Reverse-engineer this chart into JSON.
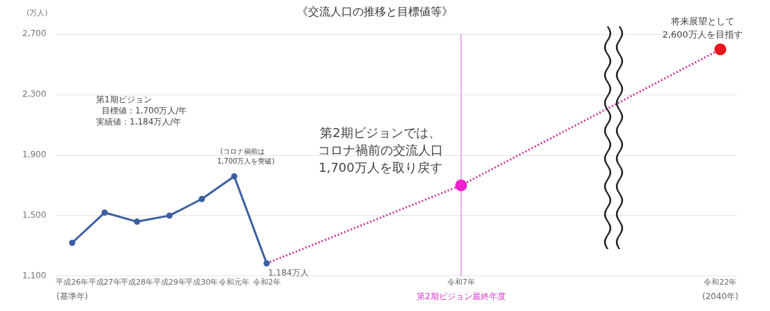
{
  "chart_data": {
    "type": "line",
    "title": "《交流人口の推移と目標値等》",
    "ylabel": "(万人)",
    "categories": [
      "平成26年",
      "平成27年",
      "平成28年",
      "平成29年",
      "平成30年",
      "令和元年",
      "令和2年",
      null,
      null,
      null,
      null,
      null,
      "令和7年",
      null,
      null,
      null,
      null,
      null,
      null,
      null,
      "令和22年"
    ],
    "series": [
      {
        "color": "#3d5fa0",
        "marker": "circle",
        "line_style": "solid",
        "values": [
          1320,
          1520,
          1460,
          1500,
          1610,
          1760,
          1184,
          null,
          null,
          null,
          null,
          null,
          null,
          null,
          null,
          null,
          null,
          null,
          null,
          null,
          null
        ]
      },
      {
        "color": "#cc3399",
        "marker": "circle",
        "line_style": "dotted",
        "colors": [
          null,
          null,
          null,
          null,
          null,
          null,
          "#cc3399",
          null,
          null,
          null,
          null,
          null,
          "#ee22cc",
          null,
          null,
          null,
          null,
          null,
          null,
          null,
          "#e8141e"
        ],
        "values": [
          null,
          null,
          null,
          null,
          null,
          null,
          1184,
          null,
          null,
          null,
          null,
          null,
          1700,
          null,
          null,
          null,
          null,
          null,
          null,
          null,
          2600
        ]
      }
    ],
    "ylim": [
      1100,
      2700
    ],
    "yticks": [
      {
        "value": 1100,
        "label": "1,100"
      },
      {
        "value": 1500,
        "label": "1,500"
      },
      {
        "value": 1900,
        "label": "1,900"
      },
      {
        "value": 2300,
        "label": "2,300"
      },
      {
        "value": 2700,
        "label": "2,700"
      }
    ],
    "grid": "y",
    "ref_lines": [
      {
        "axis": "x",
        "value": "令和7年",
        "color": "#e090e8"
      }
    ],
    "annotations": [
      "第1期ビジョン",
      "目標値：1,700万人/年",
      "実績値：1,184万人/年",
      "(コロナ禍前は",
      "1,700万人を突破)",
      {
        "text": "1,184万人",
        "x": "令和2年",
        "y": 1184
      },
      "第2期ビジョンでは、",
      "コロナ禍前の交流人口",
      "1,700万人を取り戻す",
      "将来展望として",
      "2,600万人を目指す",
      "(基準年)",
      {
        "text": "第2期ビジョン最終年度",
        "x": "令和7年",
        "y": 1100
      },
      "(2040年)"
    ]
  }
}
